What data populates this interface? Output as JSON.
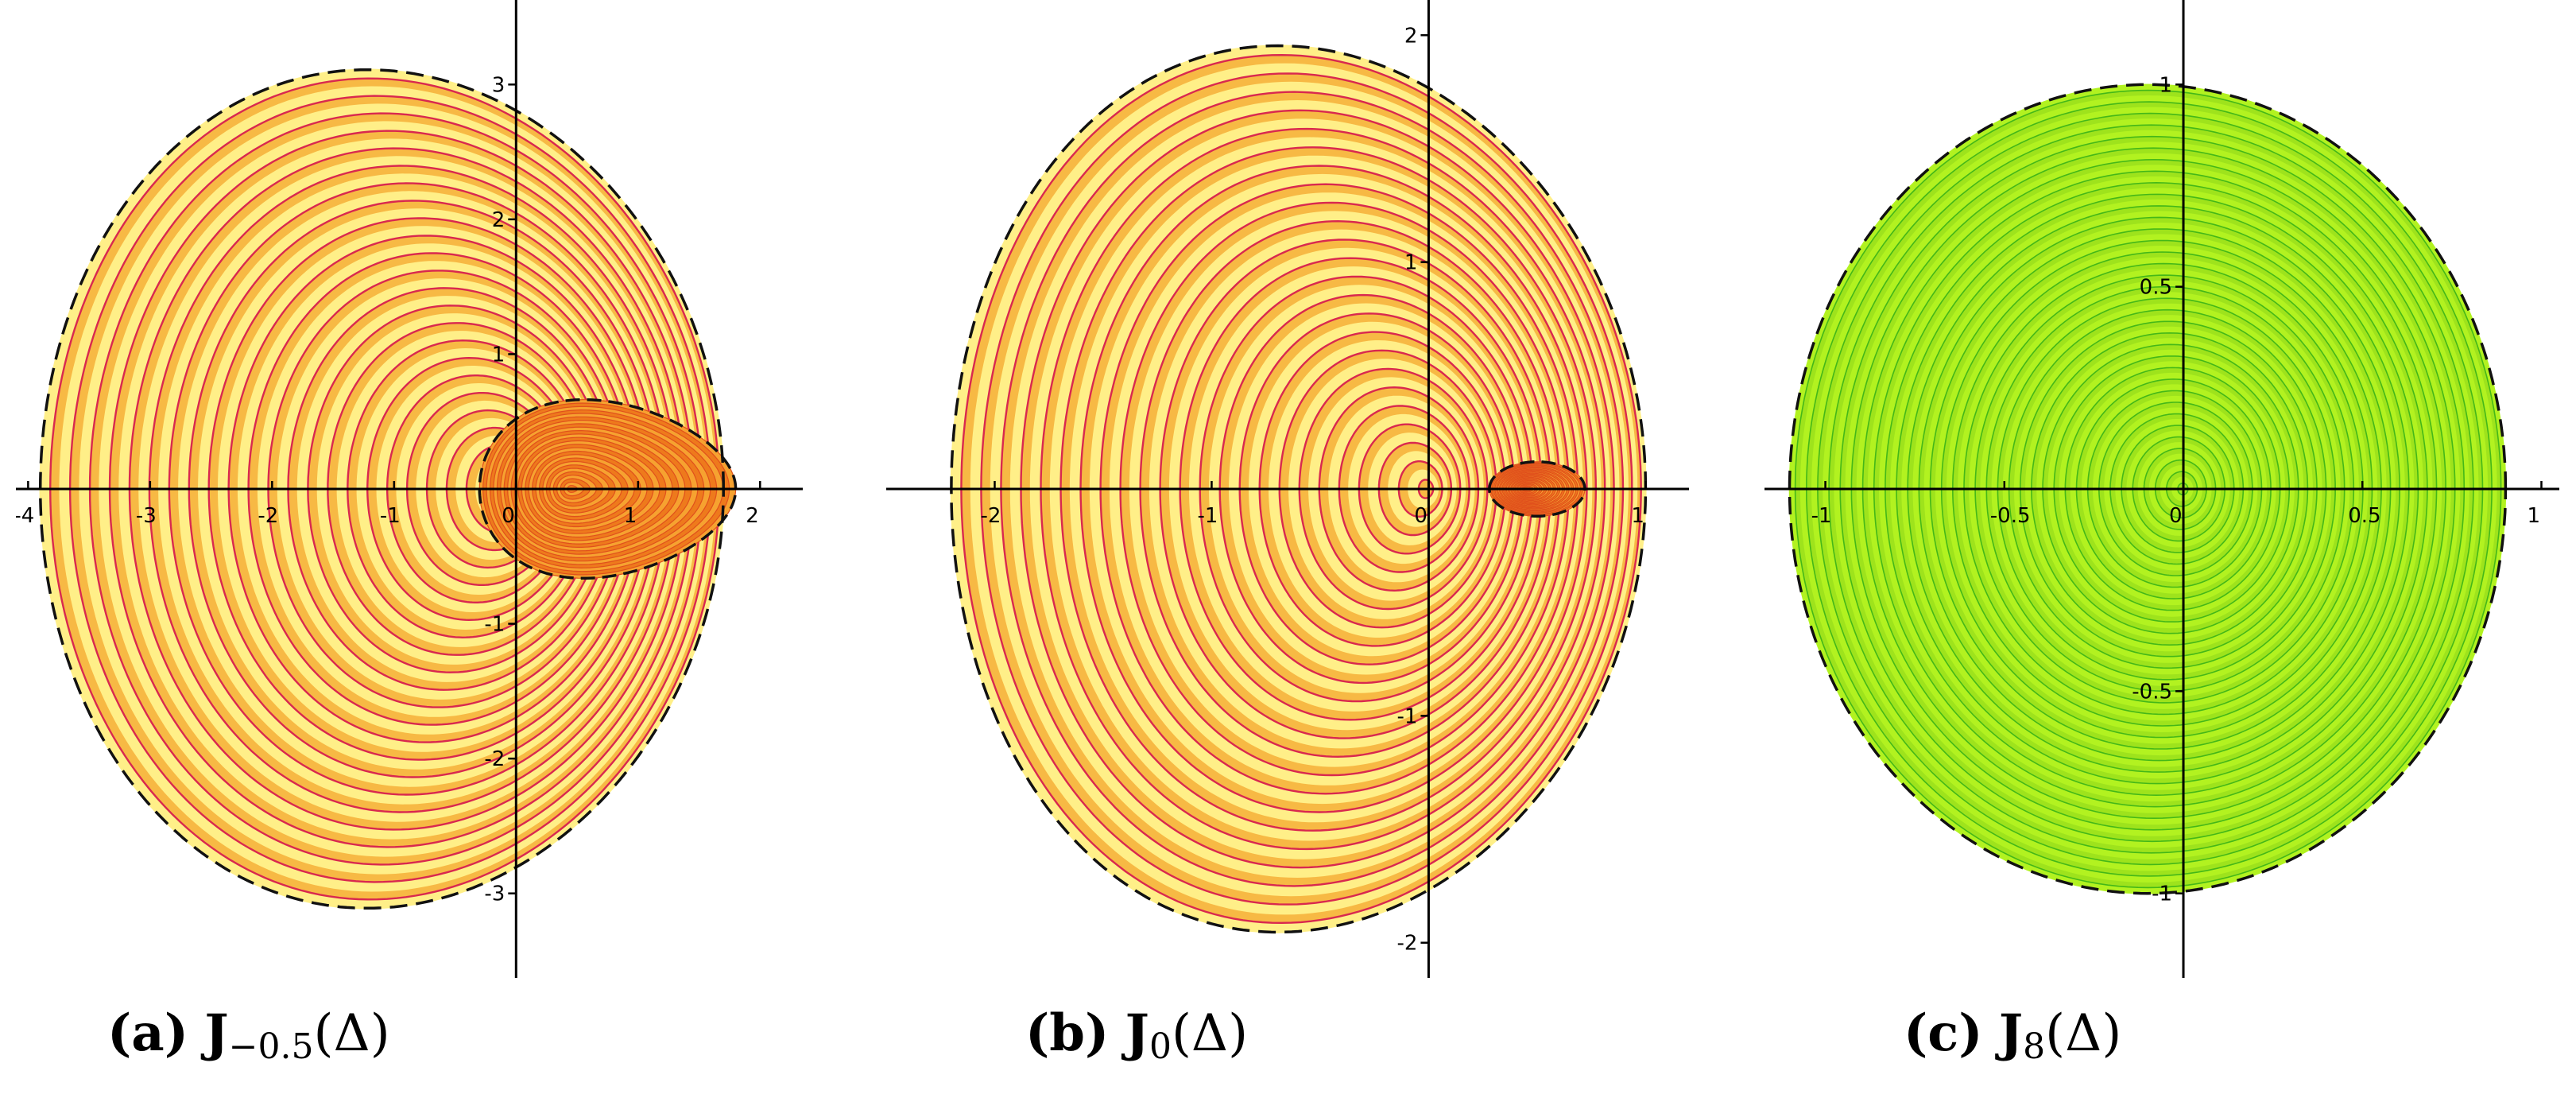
{
  "figure": {
    "captions": [
      {
        "tag": "(a)",
        "symbol": "J",
        "subscript": "−0.5",
        "argument": "(Δ)"
      },
      {
        "tag": "(b)",
        "symbol": "J",
        "subscript": "0",
        "argument": "(Δ)"
      },
      {
        "tag": "(c)",
        "symbol": "J",
        "subscript": "8",
        "argument": "(Δ)"
      }
    ]
  },
  "chart_data": [
    {
      "type": "contour",
      "panel": "a",
      "parameter": -0.5,
      "fill_colors": [
        "#ffef88",
        "#d9284f"
      ],
      "xlim": [
        -4.1,
        2.35
      ],
      "ylim": [
        -3.45,
        3.45
      ],
      "x_ticks": [
        -4,
        -3,
        -2,
        -1,
        0,
        1,
        2
      ],
      "y_ticks": [
        -3,
        -2,
        -1,
        1,
        2,
        3
      ],
      "outer_boundary": {
        "style": "dashed",
        "right_point": [
          1.8,
          0
        ],
        "x_range": [
          -3.75,
          1.8
        ],
        "y_range": [
          -3.1,
          3.1
        ]
      },
      "inner_boundary": {
        "style": "dashed",
        "x_range": [
          -0.3,
          1.8
        ],
        "y_range": [
          -0.65,
          0.65
        ]
      }
    },
    {
      "type": "contour",
      "panel": "b",
      "parameter": 0,
      "fill_colors": [
        "#ffef88",
        "#d9284f"
      ],
      "xlim": [
        -2.5,
        1.2
      ],
      "ylim": [
        -2.05,
        2.05
      ],
      "x_ticks": [
        -2,
        -1,
        0,
        1
      ],
      "y_ticks": [
        -2,
        -1,
        1,
        2
      ],
      "outer_boundary": {
        "style": "dashed",
        "right_point": [
          0.72,
          0
        ],
        "x_range": [
          -2.22,
          0.98
        ],
        "y_range": [
          -1.8,
          2.1
        ]
      },
      "inner_boundary": {
        "style": "dashed",
        "x_range": [
          0.28,
          0.72
        ],
        "y_range": [
          -0.12,
          0.12
        ]
      }
    },
    {
      "type": "contour",
      "panel": "c",
      "parameter": 8,
      "fill_colors": [
        "#b2f220",
        "#44b818"
      ],
      "xlim": [
        -1.17,
        1.05
      ],
      "ylim": [
        -1.15,
        1.15
      ],
      "x_ticks": [
        -1,
        -0.5,
        0,
        0.5,
        1
      ],
      "y_ticks": [
        -1,
        -0.5,
        0.5,
        1
      ],
      "outer_boundary": {
        "style": "dashed",
        "x_range": [
          -1.1,
          0.9
        ],
        "y_range": [
          -1.0,
          1.0
        ]
      }
    }
  ]
}
